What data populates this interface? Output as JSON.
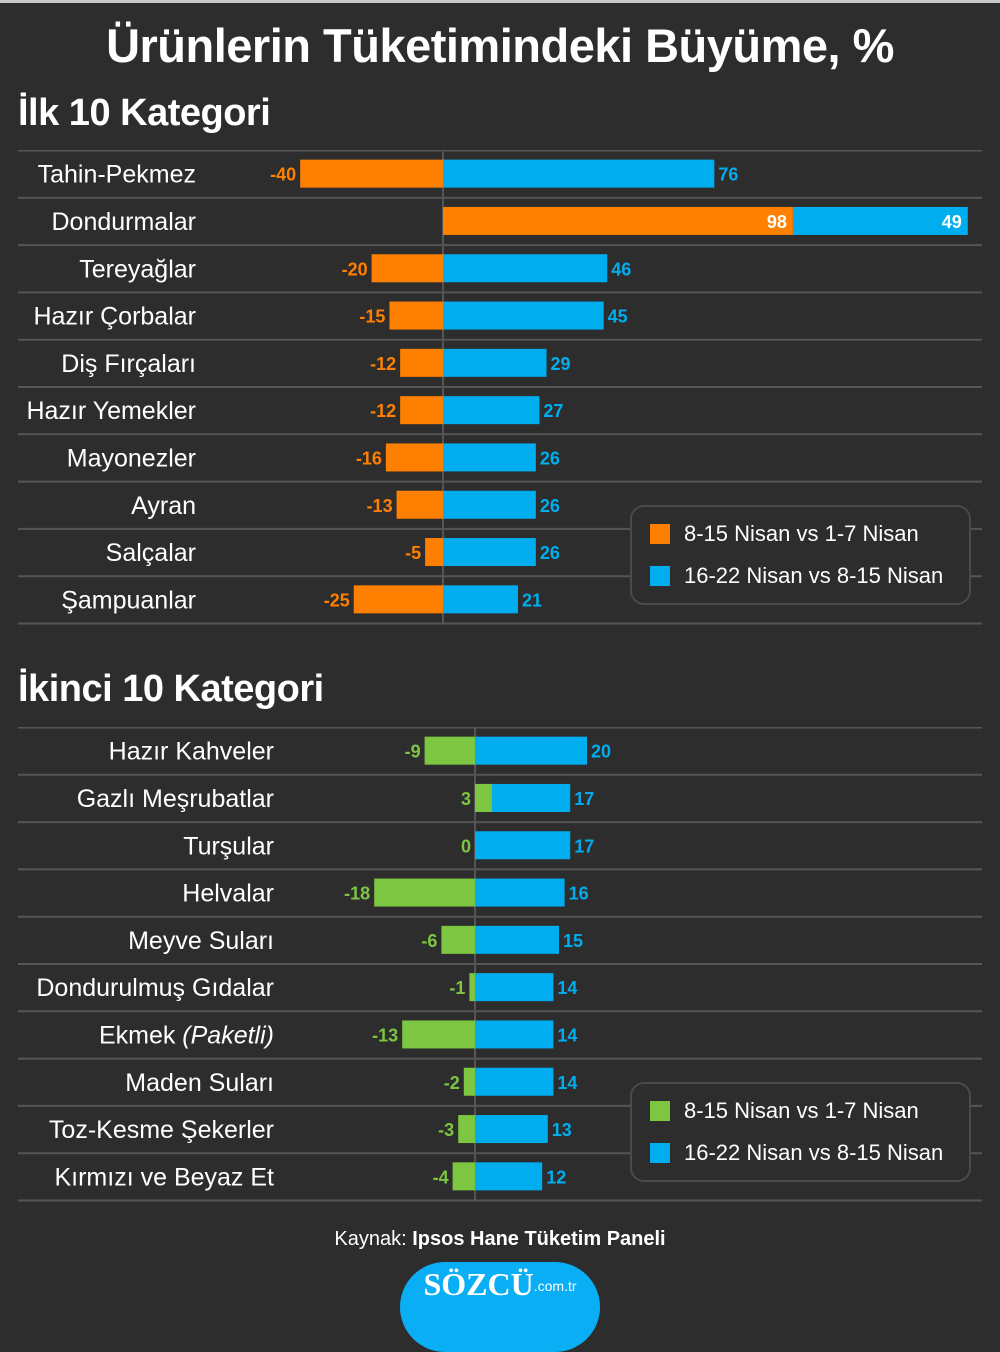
{
  "title": "Ürünlerin Tüketimindeki Büyüme, %",
  "source_label": "Kaynak:",
  "source_name": "Ipsos Hane Tüketim Paneli",
  "logo": {
    "main": "SÖZCÜ",
    "sub": ".com.tr"
  },
  "colors": {
    "orange": "#ff8000",
    "blue": "#00aeef",
    "green": "#7dc642",
    "grid": "#555555",
    "bg": "#2d2d2d"
  },
  "chart_data": [
    {
      "type": "bar",
      "title": "İlk 10 Kategori",
      "orientation": "horizontal",
      "categories": [
        "Tahin-Pekmez",
        "Dondurmalar",
        "Tereyağlar",
        "Hazır Çorbalar",
        "Diş Fırçaları",
        "Hazır Yemekler",
        "Mayonezler",
        "Ayran",
        "Salçalar",
        "Şampuanlar"
      ],
      "series": [
        {
          "name": "8-15 Nisan vs 1-7 Nisan",
          "color": "#ff8000",
          "values": [
            -40,
            98,
            -20,
            -15,
            -12,
            -12,
            -16,
            -13,
            -5,
            -25
          ]
        },
        {
          "name": "16-22 Nisan vs 8-15 Nisan",
          "color": "#00aeef",
          "values": [
            76,
            49,
            46,
            45,
            29,
            27,
            26,
            26,
            26,
            21
          ]
        }
      ],
      "stacked_rows": [
        "Dondurmalar"
      ],
      "xlim": [
        -50,
        150
      ],
      "legend": "bottom-right"
    },
    {
      "type": "bar",
      "title": "İkinci 10 Kategori",
      "orientation": "horizontal",
      "categories": [
        "Hazır Kahveler",
        "Gazlı Meşrubatlar",
        "Turşular",
        "Helvalar",
        "Meyve Suları",
        "Dondurulmuş Gıdalar",
        "Ekmek",
        "Maden Suları",
        "Toz-Kesme Şekerler",
        "Kırmızı ve Beyaz Et"
      ],
      "category_notes": {
        "Ekmek": "(Paketli)"
      },
      "series": [
        {
          "name": "8-15 Nisan vs 1-7 Nisan",
          "color": "#7dc642",
          "values": [
            -9,
            3,
            0,
            -18,
            -6,
            -1,
            -13,
            -2,
            -3,
            -4
          ]
        },
        {
          "name": "16-22 Nisan vs 8-15 Nisan",
          "color": "#00aeef",
          "values": [
            20,
            17,
            17,
            16,
            15,
            14,
            14,
            14,
            13,
            12
          ]
        }
      ],
      "xlim": [
        -30,
        90
      ],
      "legend": "bottom-right"
    }
  ]
}
